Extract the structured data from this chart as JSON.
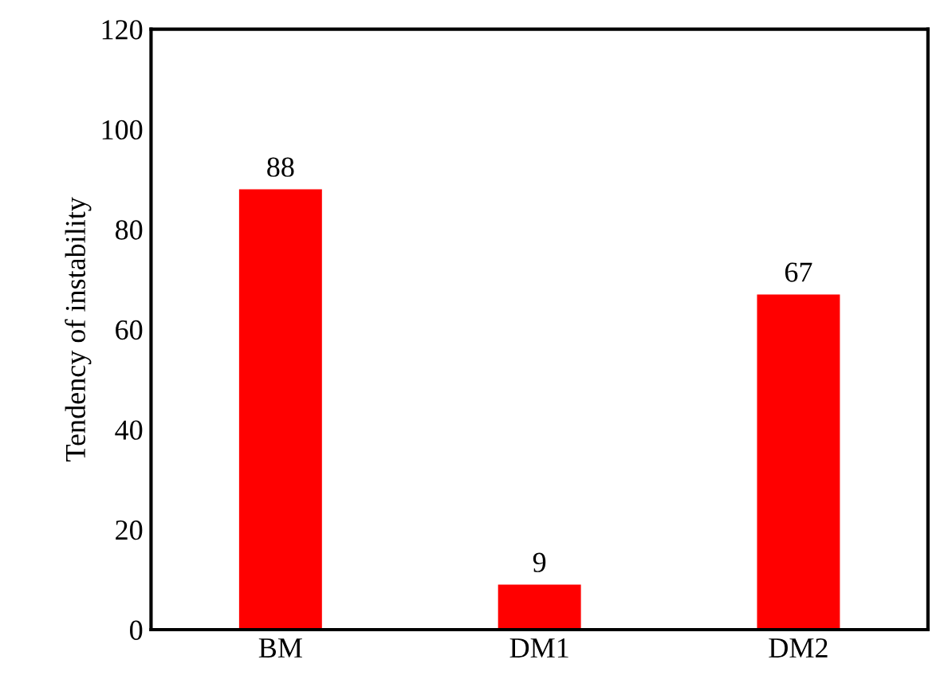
{
  "chart_data": {
    "type": "bar",
    "ylabel": "Tendency of instability",
    "categories": [
      "BM",
      "DM1",
      "DM2"
    ],
    "values": [
      88,
      9,
      67
    ],
    "color": "#ff0000",
    "ylim": [
      0,
      120
    ],
    "yticks": [
      0,
      20,
      40,
      60,
      80,
      100,
      120
    ],
    "grid": false,
    "data_labels": true
  }
}
